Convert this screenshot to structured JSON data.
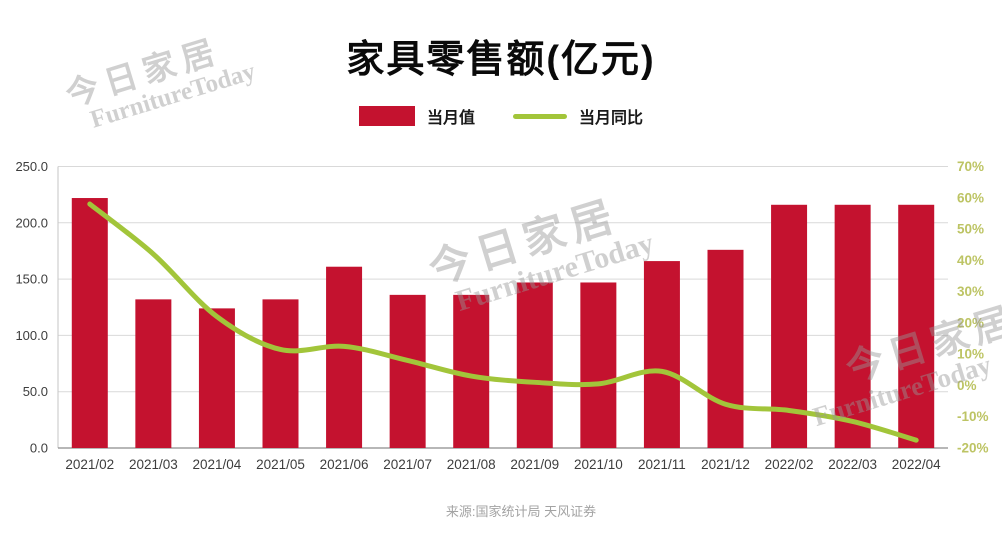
{
  "header": {
    "title": "家具零售额(亿元)"
  },
  "footer": {
    "source": "来源:国家统计局 天风证券"
  },
  "watermark": {
    "line1": "今日家居",
    "line2": "FurnitureToday"
  },
  "colors": {
    "bar": "#c4122f",
    "line": "#a2c53a",
    "grid": "#d9d9d9",
    "axis_text": "#3d3d3d",
    "right_axis_text": "#bdc464",
    "x_axis_line": "#8c8c8c",
    "y_axis_line": "#c6c6c6",
    "title_text": "#0a0a0a",
    "source_text": "#a3a3a3",
    "watermark_text": "#969696"
  },
  "chart_data": {
    "type": "bar",
    "combo": "bar+line",
    "title": "家具零售额(亿元)",
    "grid": true,
    "legend_position": "top",
    "categories": [
      "2021/02",
      "2021/03",
      "2021/04",
      "2021/05",
      "2021/06",
      "2021/07",
      "2021/08",
      "2021/09",
      "2021/10",
      "2021/11",
      "2021/12",
      "2022/02",
      "2022/03",
      "2022/04"
    ],
    "series": [
      {
        "name": "当月值",
        "type": "bar",
        "axis": "left",
        "color": "#c4122f",
        "values": [
          222,
          132,
          124,
          132,
          161,
          136,
          136,
          147,
          147,
          166,
          176,
          216,
          216,
          216
        ]
      },
      {
        "name": "当月同比",
        "type": "line",
        "axis": "right",
        "color": "#a2c53a",
        "values": [
          58,
          42,
          22,
          11.5,
          12.5,
          8,
          3,
          1,
          0.5,
          4.5,
          -6,
          -8,
          -11.5,
          -17.5
        ]
      }
    ],
    "left_axis": {
      "min": 0,
      "max": 250,
      "step": 50,
      "labels": [
        "0.0",
        "50.0",
        "100.0",
        "150.0",
        "200.0",
        "250.0"
      ]
    },
    "right_axis": {
      "min": -20,
      "max": 70,
      "step": 10,
      "labels": [
        "-20%",
        "-10%",
        "0%",
        "10%",
        "20%",
        "30%",
        "40%",
        "50%",
        "60%",
        "70%"
      ]
    }
  }
}
